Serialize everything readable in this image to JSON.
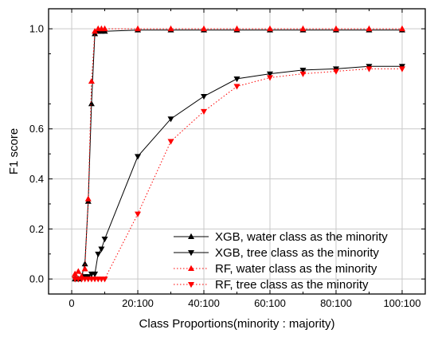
{
  "chart_data": {
    "type": "line",
    "xlabel": "Class Proportions(minority : majority)",
    "ylabel": "F1 score",
    "x_ticks": [
      {
        "value": 0,
        "label": "0"
      },
      {
        "value": 20,
        "label": "20:100"
      },
      {
        "value": 40,
        "label": "40:100"
      },
      {
        "value": 60,
        "label": "60:100"
      },
      {
        "value": 80,
        "label": "80:100"
      },
      {
        "value": 100,
        "label": "100:100"
      }
    ],
    "y_ticks": [
      {
        "value": 0.0,
        "label": "0.0"
      },
      {
        "value": 0.2,
        "label": "0.2"
      },
      {
        "value": 0.4,
        "label": "0.4"
      },
      {
        "value": 0.6,
        "label": "0.6"
      },
      {
        "value": 1.0,
        "label": "1.0"
      }
    ],
    "xlim": [
      -7,
      107
    ],
    "ylim": [
      -0.06,
      1.08
    ],
    "grid": true,
    "legend_position": "bottom-right",
    "series": [
      {
        "name": "XGB, water class as the minority",
        "color": "#000000",
        "line": "solid",
        "marker": "triangle-up",
        "x": [
          1,
          2,
          3,
          4,
          5,
          6,
          7,
          8,
          9,
          10,
          20,
          30,
          40,
          50,
          60,
          70,
          80,
          90,
          100
        ],
        "y": [
          0.0,
          0.0,
          0.01,
          0.06,
          0.31,
          0.7,
          0.98,
          0.99,
          0.99,
          0.99,
          0.995,
          0.995,
          0.995,
          0.995,
          0.995,
          0.995,
          0.995,
          0.995,
          0.995
        ]
      },
      {
        "name": "XGB, tree class as the minority",
        "color": "#000000",
        "line": "solid",
        "marker": "triangle-down",
        "x": [
          1,
          2,
          3,
          4,
          5,
          6,
          7,
          8,
          9,
          10,
          20,
          30,
          40,
          50,
          60,
          70,
          80,
          90,
          100
        ],
        "y": [
          0.0,
          0.0,
          0.0,
          0.01,
          0.01,
          0.02,
          0.02,
          0.1,
          0.12,
          0.16,
          0.49,
          0.64,
          0.73,
          0.8,
          0.82,
          0.835,
          0.84,
          0.85,
          0.85
        ]
      },
      {
        "name": "RF, water class as the minority",
        "color": "#ff0000",
        "line": "dotted",
        "marker": "triangle-up",
        "x": [
          1,
          2,
          3,
          4,
          5,
          6,
          7,
          8,
          9,
          10,
          20,
          30,
          40,
          50,
          60,
          70,
          80,
          90,
          100
        ],
        "y": [
          0.02,
          0.03,
          0.01,
          0.04,
          0.32,
          0.79,
          0.99,
          1.0,
          1.0,
          1.0,
          1.0,
          1.0,
          1.0,
          1.0,
          1.0,
          1.0,
          1.0,
          1.0,
          1.0
        ]
      },
      {
        "name": "RF, tree class as the minority",
        "color": "#ff0000",
        "line": "dotted",
        "marker": "triangle-down",
        "x": [
          1,
          2,
          3,
          4,
          5,
          6,
          7,
          8,
          9,
          10,
          20,
          30,
          40,
          50,
          60,
          70,
          80,
          90,
          100
        ],
        "y": [
          0.0,
          0.0,
          0.0,
          0.0,
          0.0,
          0.0,
          0.0,
          0.0,
          0.0,
          0.0,
          0.26,
          0.55,
          0.67,
          0.77,
          0.805,
          0.82,
          0.83,
          0.84,
          0.84
        ]
      }
    ]
  }
}
